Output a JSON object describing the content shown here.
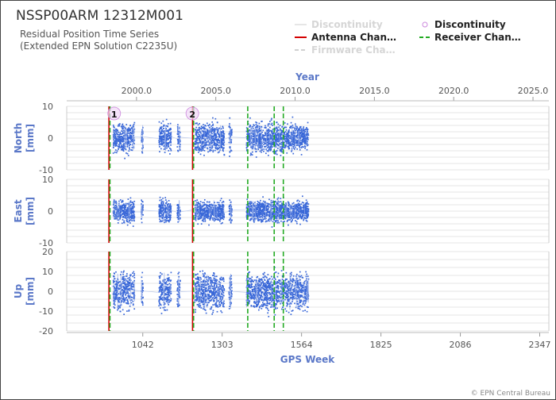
{
  "header": {
    "title": "NSSP00ARM 12312M001",
    "subtitle_line1": "Residual Position Time Series",
    "subtitle_line2": "(Extended EPN Solution C2235U)"
  },
  "footer": {
    "credit": "© EPN Central Bureau"
  },
  "colors": {
    "data": "#3a68d8",
    "axis_label": "#5b78c8",
    "antenna": "#d40000",
    "receiver": "#22aa22",
    "firmware": "#d0d0d0",
    "discontinuity": "#cc88dd"
  },
  "chart_data": {
    "type": "scatter",
    "top_axis": {
      "label": "Year",
      "range": [
        1995.6,
        2026.0
      ],
      "ticks": [
        "2000.0",
        "2005.0",
        "2010.0",
        "2015.0",
        "2020.0",
        "2025.0"
      ]
    },
    "bottom_axis": {
      "label": "GPS Week",
      "range": [
        792,
        2377
      ],
      "ticks": [
        "1042",
        "1303",
        "1564",
        "1825",
        "2086",
        "2347"
      ]
    },
    "legend": {
      "placement": "top-right",
      "entries": [
        {
          "key": "discontinuity_line",
          "label": "Discontinuity"
        },
        {
          "key": "discontinuity_marker",
          "label": "Discontinuity"
        },
        {
          "key": "antenna",
          "label": "Antenna Chan…"
        },
        {
          "key": "receiver",
          "label": "Receiver Chan…"
        },
        {
          "key": "firmware",
          "label": "Firmware Cha…"
        }
      ]
    },
    "panels": [
      {
        "name": "north",
        "ylabel_line1": "North",
        "ylabel_line2": "[mm]",
        "ylim": [
          -10,
          10
        ],
        "ticks": [
          "10",
          "0",
          "-10"
        ],
        "spread": 2.2,
        "gap_span": 6
      },
      {
        "name": "east",
        "ylabel_line1": "East",
        "ylabel_line2": "[mm]",
        "ylim": [
          -10,
          10
        ],
        "ticks": [
          "10",
          "0",
          "-10"
        ],
        "spread": 1.6,
        "gap_span": 5
      },
      {
        "name": "up",
        "ylabel_line1": "Up",
        "ylabel_line2": "[mm]",
        "ylim": [
          -20,
          20
        ],
        "ticks": [
          "20",
          "10",
          "0",
          "-10",
          "-20"
        ],
        "spread": 4.5,
        "gap_span": 14
      }
    ],
    "data_segments_gps_week": [
      [
        945,
        1015
      ],
      [
        1037,
        1043
      ],
      [
        1095,
        1135
      ],
      [
        1155,
        1165
      ],
      [
        1213,
        1310
      ],
      [
        1325,
        1335
      ],
      [
        1383,
        1587
      ]
    ],
    "antenna_changes_gps_week": [
      932,
      1207
    ],
    "receiver_changes_gps_week": [
      932,
      1207,
      1385,
      1472,
      1502
    ],
    "firmware_changes_gps_week": [
      1472
    ],
    "discontinuities": [
      {
        "label": "1",
        "gps_week": 948
      },
      {
        "label": "2",
        "gps_week": 1205
      }
    ]
  }
}
